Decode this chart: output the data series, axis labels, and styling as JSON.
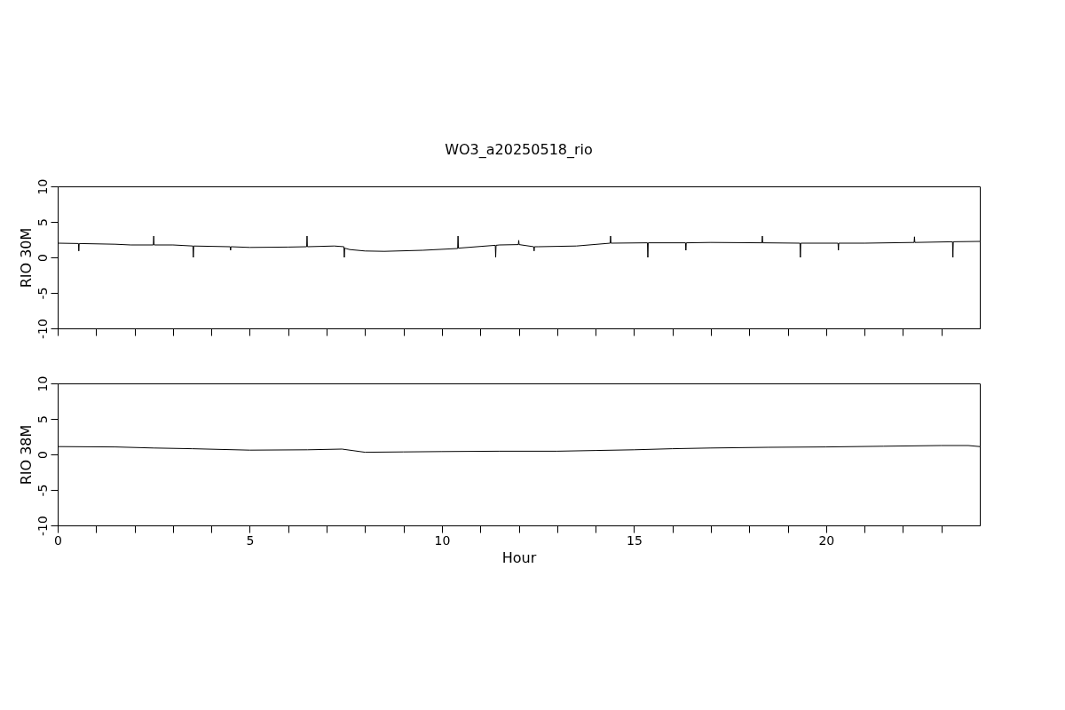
{
  "chart_data": [
    {
      "type": "line",
      "title": "WO3_a20250518_rio",
      "ylabel": "RIO 30M",
      "grid": false,
      "tick_labels": "y",
      "marker": "none",
      "line_style": "solid",
      "xlim": [
        0,
        24
      ],
      "ylim": [
        -10,
        10
      ],
      "xticks": [
        0,
        {
          "value": 1,
          "label": null
        },
        {
          "value": 2,
          "label": null
        },
        {
          "value": 3,
          "label": null
        },
        {
          "value": 4,
          "label": null
        },
        5,
        {
          "value": 6,
          "label": null
        },
        {
          "value": 7,
          "label": null
        },
        {
          "value": 8,
          "label": null
        },
        {
          "value": 9,
          "label": null
        },
        10,
        {
          "value": 11,
          "label": null
        },
        {
          "value": 12,
          "label": null
        },
        {
          "value": 13,
          "label": null
        },
        {
          "value": 14,
          "label": null
        },
        15,
        {
          "value": 16,
          "label": null
        },
        {
          "value": 17,
          "label": null
        },
        {
          "value": 18,
          "label": null
        },
        {
          "value": 19,
          "label": null
        },
        20,
        {
          "value": 21,
          "label": null
        },
        {
          "value": 22,
          "label": null
        },
        {
          "value": 23,
          "label": null
        }
      ],
      "yticks": [
        -10,
        -5,
        0,
        5,
        10
      ],
      "series": [
        {
          "color": "#000000",
          "x": [
            0,
            0.54,
            0.55,
            0.56,
            1.5,
            1.9,
            2.49,
            2.5,
            2.51,
            3.0,
            3.52,
            3.53,
            3.54,
            4.49,
            4.5,
            4.51,
            5.0,
            6.0,
            6.48,
            6.49,
            6.5,
            7.2,
            7.45,
            7.46,
            7.47,
            7.6,
            8.0,
            8.5,
            9.5,
            10.41,
            10.42,
            10.43,
            11.39,
            11.4,
            11.41,
            11.5,
            11.99,
            12.0,
            12.01,
            12.39,
            12.4,
            12.41,
            12.5,
            13.5,
            14.38,
            14.39,
            14.4,
            15.35,
            15.36,
            15.37,
            16.34,
            16.35,
            16.36,
            17.0,
            18.33,
            18.34,
            18.35,
            19.32,
            19.33,
            19.34,
            20.31,
            20.32,
            20.33,
            21.0,
            22.29,
            22.3,
            22.31,
            23.29,
            23.3,
            23.31,
            24.0
          ],
          "values": [
            2.0,
            1.95,
            0.9,
            1.95,
            1.85,
            1.75,
            1.75,
            3.0,
            1.75,
            1.75,
            1.6,
            0.0,
            1.6,
            1.5,
            1.0,
            1.5,
            1.4,
            1.45,
            1.5,
            3.0,
            1.5,
            1.6,
            1.5,
            0.0,
            1.3,
            1.1,
            0.9,
            0.85,
            1.0,
            1.25,
            3.0,
            1.3,
            1.7,
            0.0,
            1.7,
            1.75,
            1.8,
            2.4,
            1.8,
            1.5,
            0.9,
            1.5,
            1.5,
            1.6,
            2.0,
            3.0,
            2.0,
            2.05,
            0.0,
            2.05,
            2.05,
            1.0,
            2.05,
            2.1,
            2.05,
            3.0,
            2.05,
            2.0,
            0.0,
            2.0,
            2.0,
            1.0,
            2.0,
            2.0,
            2.1,
            2.9,
            2.1,
            2.2,
            0.0,
            2.2,
            2.25
          ]
        }
      ]
    },
    {
      "type": "line",
      "ylabel": "RIO 38M",
      "xlabel": "Hour",
      "grid": false,
      "marker": "none",
      "line_style": "solid",
      "xlim": [
        0,
        24
      ],
      "ylim": [
        -10,
        10
      ],
      "xticks": [
        0,
        {
          "value": 1,
          "label": null
        },
        {
          "value": 2,
          "label": null
        },
        {
          "value": 3,
          "label": null
        },
        {
          "value": 4,
          "label": null
        },
        5,
        {
          "value": 6,
          "label": null
        },
        {
          "value": 7,
          "label": null
        },
        {
          "value": 8,
          "label": null
        },
        {
          "value": 9,
          "label": null
        },
        10,
        {
          "value": 11,
          "label": null
        },
        {
          "value": 12,
          "label": null
        },
        {
          "value": 13,
          "label": null
        },
        {
          "value": 14,
          "label": null
        },
        15,
        {
          "value": 16,
          "label": null
        },
        {
          "value": 17,
          "label": null
        },
        {
          "value": 18,
          "label": null
        },
        {
          "value": 19,
          "label": null
        },
        20,
        {
          "value": 21,
          "label": null
        },
        {
          "value": 22,
          "label": null
        },
        {
          "value": 23,
          "label": null
        }
      ],
      "yticks": [
        -10,
        -5,
        0,
        5,
        10
      ],
      "series": [
        {
          "color": "#000000",
          "x": [
            0,
            1.5,
            2.5,
            3.5,
            5.0,
            6.5,
            7.4,
            8.0,
            9.0,
            10.0,
            11.5,
            13.0,
            14.0,
            15.0,
            16.0,
            17.0,
            18.5,
            20.0,
            21.5,
            23.0,
            23.7,
            24.0
          ],
          "values": [
            1.1,
            1.05,
            0.9,
            0.8,
            0.6,
            0.65,
            0.75,
            0.3,
            0.35,
            0.4,
            0.45,
            0.45,
            0.55,
            0.65,
            0.8,
            0.9,
            1.0,
            1.05,
            1.15,
            1.25,
            1.25,
            1.1
          ]
        }
      ]
    }
  ]
}
